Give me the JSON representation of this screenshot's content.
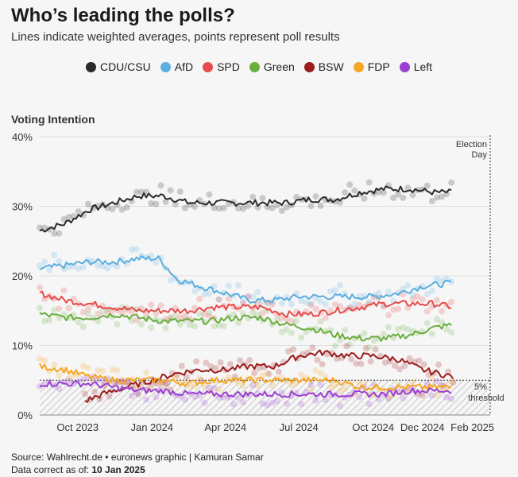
{
  "title": "Who’s leading the polls?",
  "subtitle": "Lines indicate weighted averages, points represent poll results",
  "section_label": "Voting Intention",
  "footer": {
    "source": "Source: Wahlrecht.de • euronews graphic | Kamuran Samar",
    "date_prefix": "Data correct as of: ",
    "date_value": "10 Jan 2025"
  },
  "annotations": {
    "election_line1": "Election",
    "election_line2": "Day",
    "threshold_line1": "5%",
    "threshold_line2": "threshold"
  },
  "chart_data": {
    "type": "line",
    "ylabel": "Voting Intention",
    "y_ticks": [
      "0%",
      "10%",
      "20%",
      "30%",
      "40%"
    ],
    "y_tick_values": [
      0,
      10,
      20,
      30,
      40
    ],
    "ylim": [
      0,
      40
    ],
    "x_ticks": [
      "Oct 2023",
      "Jan 2024",
      "Apr 2024",
      "Jul 2024",
      "Oct 2024",
      "Dec 2024",
      "Feb 2025"
    ],
    "x_tick_values": [
      "2023-10-01",
      "2024-01-01",
      "2024-04-01",
      "2024-07-01",
      "2024-10-01",
      "2024-12-01",
      "2025-02-01"
    ],
    "xlim": [
      "2023-08-15",
      "2025-02-23"
    ],
    "election_day": "2025-02-23",
    "threshold": 5,
    "grid": true,
    "legend_position": "top",
    "series": [
      {
        "name": "CDU/CSU",
        "color": "#2b2b2b",
        "points": [
          [
            "2023-08-15",
            26.5
          ],
          [
            "2023-09-15",
            27.5
          ],
          [
            "2023-10-15",
            29.5
          ],
          [
            "2023-11-15",
            30.5
          ],
          [
            "2023-12-15",
            31.5
          ],
          [
            "2024-01-15",
            31.5
          ],
          [
            "2024-02-15",
            30.5
          ],
          [
            "2024-03-15",
            30.5
          ],
          [
            "2024-04-15",
            30.5
          ],
          [
            "2024-05-15",
            30.5
          ],
          [
            "2024-06-15",
            30.5
          ],
          [
            "2024-07-15",
            31
          ],
          [
            "2024-08-15",
            31
          ],
          [
            "2024-09-15",
            32
          ],
          [
            "2024-10-15",
            32.5
          ],
          [
            "2024-11-15",
            32.5
          ],
          [
            "2024-12-15",
            32
          ],
          [
            "2025-01-08",
            32
          ]
        ]
      },
      {
        "name": "AfD",
        "color": "#5aaee0",
        "points": [
          [
            "2023-08-15",
            21
          ],
          [
            "2023-09-15",
            21.5
          ],
          [
            "2023-10-15",
            22
          ],
          [
            "2023-11-15",
            22
          ],
          [
            "2023-12-15",
            22.5
          ],
          [
            "2024-01-10",
            22.5
          ],
          [
            "2024-02-01",
            19.5
          ],
          [
            "2024-03-01",
            18.5
          ],
          [
            "2024-04-01",
            17.5
          ],
          [
            "2024-05-01",
            16.5
          ],
          [
            "2024-06-01",
            16.5
          ],
          [
            "2024-07-01",
            17
          ],
          [
            "2024-08-01",
            17
          ],
          [
            "2024-09-01",
            17
          ],
          [
            "2024-10-01",
            17
          ],
          [
            "2024-11-01",
            17.5
          ],
          [
            "2024-12-01",
            18.5
          ],
          [
            "2025-01-08",
            19
          ]
        ]
      },
      {
        "name": "SPD",
        "color": "#e64b4b",
        "points": [
          [
            "2023-08-15",
            17.5
          ],
          [
            "2023-09-15",
            16.5
          ],
          [
            "2023-10-15",
            16
          ],
          [
            "2023-11-15",
            15.5
          ],
          [
            "2023-12-15",
            15
          ],
          [
            "2024-01-15",
            15
          ],
          [
            "2024-02-15",
            15
          ],
          [
            "2024-03-15",
            15.5
          ],
          [
            "2024-04-15",
            15.5
          ],
          [
            "2024-05-15",
            15.5
          ],
          [
            "2024-06-15",
            14.5
          ],
          [
            "2024-07-15",
            14.5
          ],
          [
            "2024-08-15",
            15
          ],
          [
            "2024-09-15",
            15.5
          ],
          [
            "2024-10-15",
            16
          ],
          [
            "2024-11-15",
            16
          ],
          [
            "2024-12-15",
            16
          ],
          [
            "2025-01-08",
            15.5
          ]
        ]
      },
      {
        "name": "Green",
        "color": "#6aae3e",
        "points": [
          [
            "2023-08-15",
            14.5
          ],
          [
            "2023-09-15",
            14
          ],
          [
            "2023-10-15",
            14
          ],
          [
            "2023-11-15",
            14.5
          ],
          [
            "2023-12-15",
            14
          ],
          [
            "2024-01-15",
            13.5
          ],
          [
            "2024-02-15",
            13.5
          ],
          [
            "2024-03-15",
            13.5
          ],
          [
            "2024-04-15",
            14
          ],
          [
            "2024-05-15",
            14
          ],
          [
            "2024-06-15",
            13
          ],
          [
            "2024-07-15",
            12.5
          ],
          [
            "2024-08-15",
            11.5
          ],
          [
            "2024-09-15",
            11
          ],
          [
            "2024-10-15",
            11
          ],
          [
            "2024-11-15",
            11.5
          ],
          [
            "2024-12-15",
            12.5
          ],
          [
            "2025-01-08",
            13
          ]
        ]
      },
      {
        "name": "BSW",
        "color": "#9b1c1c",
        "points": [
          [
            "2023-10-10",
            2
          ],
          [
            "2023-11-01",
            3
          ],
          [
            "2023-12-01",
            4
          ],
          [
            "2024-01-01",
            5
          ],
          [
            "2024-02-01",
            6
          ],
          [
            "2024-03-01",
            6.5
          ],
          [
            "2024-04-01",
            6.5
          ],
          [
            "2024-05-01",
            7
          ],
          [
            "2024-06-01",
            7
          ],
          [
            "2024-07-01",
            8.5
          ],
          [
            "2024-08-01",
            9
          ],
          [
            "2024-09-01",
            8.5
          ],
          [
            "2024-10-01",
            8.5
          ],
          [
            "2024-11-01",
            8
          ],
          [
            "2024-12-01",
            6.5
          ],
          [
            "2025-01-08",
            5.5
          ]
        ]
      },
      {
        "name": "FDP",
        "color": "#f5a623",
        "points": [
          [
            "2023-08-15",
            7
          ],
          [
            "2023-09-15",
            6.5
          ],
          [
            "2023-10-15",
            5.5
          ],
          [
            "2023-11-15",
            5
          ],
          [
            "2023-12-15",
            5
          ],
          [
            "2024-01-15",
            5
          ],
          [
            "2024-02-15",
            4.5
          ],
          [
            "2024-03-15",
            5
          ],
          [
            "2024-04-15",
            5
          ],
          [
            "2024-05-15",
            5
          ],
          [
            "2024-06-15",
            5
          ],
          [
            "2024-07-15",
            5
          ],
          [
            "2024-08-15",
            5
          ],
          [
            "2024-09-15",
            4
          ],
          [
            "2024-10-15",
            4
          ],
          [
            "2024-11-15",
            4
          ],
          [
            "2024-12-15",
            4
          ],
          [
            "2025-01-08",
            4
          ]
        ]
      },
      {
        "name": "Left",
        "color": "#9b3fd1",
        "points": [
          [
            "2023-08-15",
            4.5
          ],
          [
            "2023-09-15",
            4.5
          ],
          [
            "2023-10-15",
            4.5
          ],
          [
            "2023-11-15",
            4
          ],
          [
            "2023-12-15",
            3.5
          ],
          [
            "2024-01-15",
            3.5
          ],
          [
            "2024-02-15",
            3
          ],
          [
            "2024-03-15",
            3
          ],
          [
            "2024-04-15",
            3
          ],
          [
            "2024-05-15",
            3
          ],
          [
            "2024-06-15",
            3
          ],
          [
            "2024-07-15",
            3
          ],
          [
            "2024-08-15",
            3
          ],
          [
            "2024-09-15",
            3
          ],
          [
            "2024-10-15",
            3
          ],
          [
            "2024-11-15",
            3.5
          ],
          [
            "2024-12-15",
            3.5
          ],
          [
            "2025-01-08",
            3.5
          ]
        ]
      }
    ]
  }
}
